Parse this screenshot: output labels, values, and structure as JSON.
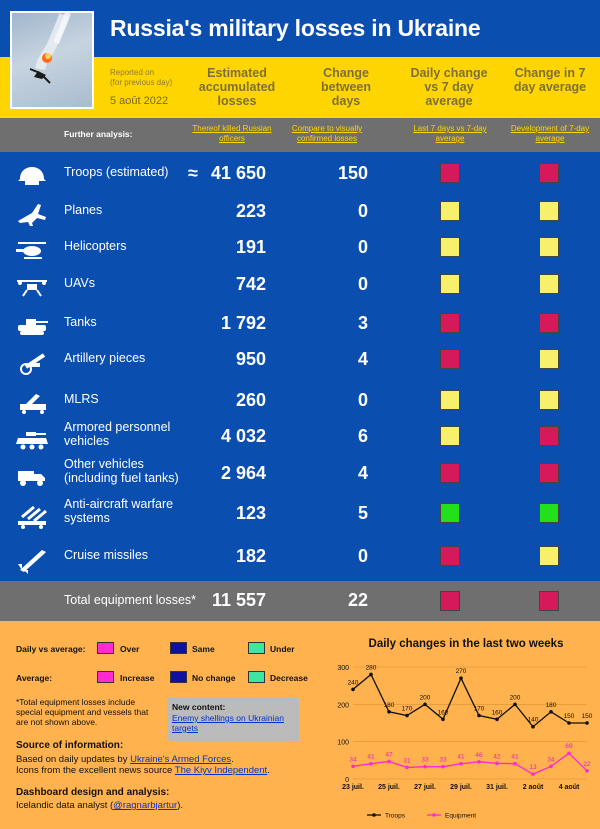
{
  "header": {
    "title": "Russia's military losses in Ukraine",
    "reported_on": "Reported on",
    "reported_sub": "(for previous day)",
    "date": "5 août 2022"
  },
  "columns": {
    "estimated": "Estimated accumulated losses",
    "change": "Change between days",
    "daily_vs": "Daily change vs 7 day average",
    "change_7": "Change in 7 day average"
  },
  "further": {
    "label": "Further analysis:",
    "link1": "Thereof killed Russian officers",
    "link2": "Compare to visually confirmed losses",
    "link3": "Last 7 days vs 7-day average",
    "link4": "Development of 7-day average"
  },
  "rows": [
    {
      "label": "Troops (estimated)",
      "approx": "≈",
      "estimated": "41 650",
      "change": "150",
      "daily_vs": "#d6195a",
      "change7": "#d6195a",
      "icon": "helmet-icon"
    },
    {
      "label": "Planes",
      "estimated": "223",
      "change": "0",
      "daily_vs": "#f7f06a",
      "change7": "#f7f06a",
      "icon": "plane-icon"
    },
    {
      "label": "Helicopters",
      "estimated": "191",
      "change": "0",
      "daily_vs": "#f7f06a",
      "change7": "#f7f06a",
      "icon": "helicopter-icon"
    },
    {
      "label": "UAVs",
      "estimated": "742",
      "change": "0",
      "daily_vs": "#f7f06a",
      "change7": "#f7f06a",
      "icon": "drone-icon"
    },
    {
      "label": "Tanks",
      "estimated": "1 792",
      "change": "3",
      "daily_vs": "#d6195a",
      "change7": "#d6195a",
      "icon": "tank-icon"
    },
    {
      "label": "Artillery pieces",
      "estimated": "950",
      "change": "4",
      "daily_vs": "#d6195a",
      "change7": "#f7f06a",
      "icon": "artillery-icon"
    },
    {
      "label": "MLRS",
      "estimated": "260",
      "change": "0",
      "daily_vs": "#f7f06a",
      "change7": "#f7f06a",
      "icon": "mlrs-icon"
    },
    {
      "label": "Armored personnel vehicles",
      "estimated": "4 032",
      "change": "6",
      "daily_vs": "#f7f06a",
      "change7": "#d6195a",
      "icon": "apv-icon"
    },
    {
      "label": "Other vehicles (including fuel tanks)",
      "estimated": "2 964",
      "change": "4",
      "daily_vs": "#d6195a",
      "change7": "#d6195a",
      "icon": "truck-icon"
    },
    {
      "label": "Anti-aircraft warfare systems",
      "estimated": "123",
      "change": "5",
      "daily_vs": "#22e01a",
      "change7": "#22e01a",
      "icon": "anti-aircraft-icon"
    },
    {
      "label": "Cruise missiles",
      "estimated": "182",
      "change": "0",
      "daily_vs": "#d6195a",
      "change7": "#f7f06a",
      "icon": "missile-icon"
    }
  ],
  "total": {
    "label": "Total equipment losses*",
    "estimated": "11 557",
    "change": "22",
    "daily_vs": "#d6195a",
    "change7": "#d6195a"
  },
  "legend": {
    "daily_label": "Daily vs average:",
    "over": "Over",
    "same": "Same",
    "under": "Under",
    "avg_label": "Average:",
    "increase": "Increase",
    "no_change": "No change",
    "decrease": "Decrease",
    "color_magenta": "#ff2bd1",
    "color_navy": "#1010a0",
    "color_green": "#3ee6a2"
  },
  "footnote": "*Total equipment losses include special equipment and vessels that are not shown above.",
  "newcontent": {
    "title": "New content:",
    "link": "Enemy shellings on Ukrainian targets"
  },
  "source": {
    "title": "Source of information:",
    "line1_pre": "Based on daily updates by ",
    "line1_link": "Ukraine's Armed Forces",
    "line1_post": ".",
    "line2_pre": "Icons from the excellent news source ",
    "line2_link": "The Kiyv Independent",
    "line2_post": "."
  },
  "design": {
    "title": "Dashboard design and analysis:",
    "line_pre": "Icelandic data analyst (",
    "line_link": "@ragnarbjartur",
    "line_post": ")."
  },
  "chart_data": {
    "type": "line",
    "title": "Daily changes in the last two weeks",
    "x": [
      "23 juil.",
      "24 juil.",
      "25 juil.",
      "26 juil.",
      "27 juil.",
      "28 juil.",
      "29 juil.",
      "30 juil.",
      "31 juil.",
      "1 août",
      "2 août",
      "3 août",
      "4 août",
      "5 août"
    ],
    "xticks": [
      "23 juil.",
      "25 juil.",
      "27 juil.",
      "29 juil.",
      "31 juil.",
      "2 août",
      "4 août"
    ],
    "yticks": [
      0,
      100,
      200,
      300
    ],
    "ylim": [
      0,
      300
    ],
    "series": [
      {
        "name": "Troops",
        "color": "#111111",
        "values": [
          240,
          280,
          180,
          170,
          200,
          160,
          270,
          170,
          160,
          200,
          140,
          180,
          150,
          150
        ]
      },
      {
        "name": "Equipment",
        "color": "#ff2bd1",
        "values": [
          34,
          41,
          47,
          31,
          33,
          33,
          41,
          46,
          42,
          41,
          13,
          34,
          69,
          22
        ]
      }
    ]
  }
}
